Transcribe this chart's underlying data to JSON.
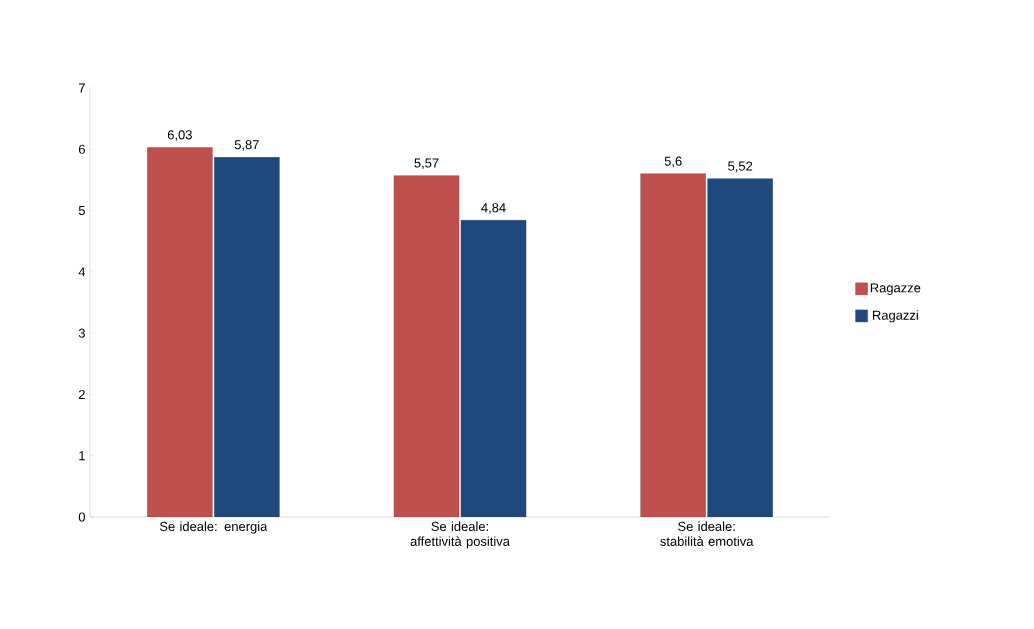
{
  "chart_data": {
    "type": "bar",
    "categories": [
      "Se ideale: energia",
      "Se ideale: affettività positiva",
      "Se ideale: stabilità emotiva"
    ],
    "series": [
      {
        "name": "Ragazze",
        "color": "#c0504d",
        "values": [
          6.03,
          5.57,
          5.6
        ],
        "value_labels": [
          "6,03",
          "5,57",
          "5,6"
        ]
      },
      {
        "name": "Ragazzi",
        "color": "#1f497d",
        "values": [
          5.87,
          4.84,
          5.52
        ],
        "value_labels": [
          "5,87",
          "4,84",
          "5,52"
        ]
      }
    ],
    "ylim": [
      0,
      7
    ],
    "yticks": [
      0,
      1,
      2,
      3,
      4,
      5,
      6,
      7
    ],
    "legend": "right"
  }
}
